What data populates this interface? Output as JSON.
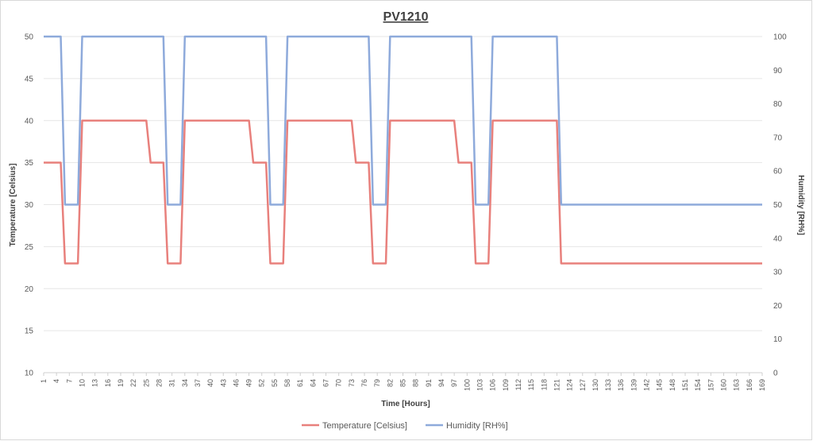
{
  "chart_data": {
    "type": "line",
    "title": "PV1210",
    "xlabel": "Time [Hours]",
    "ylabel_left": "Temperature [Celsius]",
    "ylabel_right": "Humidity [RH%]",
    "ylim_left": [
      10,
      50
    ],
    "ylim_right": [
      0,
      100
    ],
    "y_ticks_left": [
      10,
      15,
      20,
      25,
      30,
      35,
      40,
      45,
      50
    ],
    "y_ticks_right": [
      0,
      10,
      20,
      30,
      40,
      50,
      60,
      70,
      80,
      90,
      100
    ],
    "x_ticks": [
      "1",
      "4",
      "7",
      "10",
      "13",
      "16",
      "19",
      "22",
      "25",
      "28",
      "31",
      "34",
      "37",
      "40",
      "43",
      "46",
      "49",
      "52",
      "55",
      "58",
      "61",
      "64",
      "67",
      "70",
      "73",
      "76",
      "79",
      "82",
      "85",
      "88",
      "91",
      "94",
      "97",
      "100",
      "103",
      "106",
      "109",
      "112",
      "115",
      "118",
      "121",
      "124",
      "127",
      "130",
      "133",
      "136",
      "139",
      "142",
      "145",
      "148",
      "151",
      "154",
      "157",
      "160",
      "163",
      "166",
      "169"
    ],
    "x_range": [
      1,
      169
    ],
    "grid": true,
    "legend_position": "bottom",
    "series": [
      {
        "name": "Temperature [Celsius]",
        "axis": "left",
        "color": "#e8807c",
        "x": [
          1,
          5,
          6,
          9,
          10,
          25,
          26,
          29,
          30,
          33,
          34,
          49,
          50,
          53,
          54,
          57,
          58,
          73,
          74,
          77,
          78,
          81,
          82,
          97,
          98,
          101,
          102,
          105,
          106,
          121,
          122,
          169
        ],
        "y": [
          35,
          35,
          23,
          23,
          40,
          40,
          35,
          35,
          23,
          23,
          40,
          40,
          35,
          35,
          23,
          23,
          40,
          40,
          35,
          35,
          23,
          23,
          40,
          40,
          35,
          35,
          23,
          23,
          40,
          40,
          23,
          23
        ]
      },
      {
        "name": "Humidity [RH%]",
        "axis": "right",
        "color": "#8eaadb",
        "x": [
          1,
          5,
          6,
          9,
          10,
          29,
          30,
          33,
          34,
          53,
          54,
          57,
          58,
          77,
          78,
          81,
          82,
          101,
          102,
          105,
          106,
          121,
          122,
          169
        ],
        "y": [
          100,
          100,
          50,
          50,
          100,
          100,
          50,
          50,
          100,
          100,
          50,
          50,
          100,
          100,
          50,
          50,
          100,
          100,
          50,
          50,
          100,
          100,
          50,
          50
        ]
      }
    ]
  }
}
